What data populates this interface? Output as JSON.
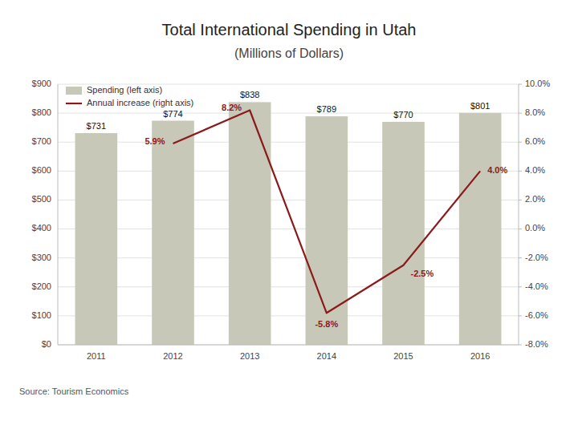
{
  "chart_data": {
    "type": "bar",
    "title": "Total International Spending in Utah",
    "subtitle": "(Millions of Dollars)",
    "categories": [
      "2011",
      "2012",
      "2013",
      "2014",
      "2015",
      "2016"
    ],
    "series": [
      {
        "name": "Spending (left axis)",
        "type": "bar",
        "color": "#C8C8B8",
        "values": [
          731,
          774,
          838,
          789,
          770,
          801
        ],
        "value_labels": [
          "$731",
          "$774",
          "$838",
          "$789",
          "$770",
          "$801"
        ]
      },
      {
        "name": "Annual increase (right axis)",
        "type": "line",
        "axis": "y2",
        "color": "#8B1A1A",
        "values": [
          null,
          5.9,
          8.2,
          -5.8,
          -2.5,
          4.0
        ],
        "value_labels": [
          null,
          "5.9%",
          "8.2%",
          "-5.8%",
          "-2.5%",
          "4.0%"
        ]
      }
    ],
    "ylim": [
      0,
      900
    ],
    "yticks": [
      {
        "value": 0,
        "label": "$0"
      },
      {
        "value": 100,
        "label": "$100"
      },
      {
        "value": 200,
        "label": "$200"
      },
      {
        "value": 300,
        "label": "$300"
      },
      {
        "value": 400,
        "label": "$400"
      },
      {
        "value": 500,
        "label": "$500"
      },
      {
        "value": 600,
        "label": "$600"
      },
      {
        "value": 700,
        "label": "$700"
      },
      {
        "value": 800,
        "label": "$800"
      },
      {
        "value": 900,
        "label": "$900"
      }
    ],
    "y2lim": [
      -8.0,
      10.0
    ],
    "y2ticks": [
      {
        "value": -8.0,
        "label": "-8.0%"
      },
      {
        "value": -6.0,
        "label": "-6.0%"
      },
      {
        "value": -4.0,
        "label": "-4.0%"
      },
      {
        "value": -2.0,
        "label": "-2.0%"
      },
      {
        "value": 0.0,
        "label": "0.0%"
      },
      {
        "value": 2.0,
        "label": "2.0%"
      },
      {
        "value": 4.0,
        "label": "4.0%"
      },
      {
        "value": 6.0,
        "label": "6.0%"
      },
      {
        "value": 8.0,
        "label": "8.0%"
      },
      {
        "value": 10.0,
        "label": "10.0%"
      }
    ],
    "grid": true,
    "legend": "upper left",
    "data_labels": true,
    "annotations": [
      "Source: Tourism Economics"
    ]
  }
}
